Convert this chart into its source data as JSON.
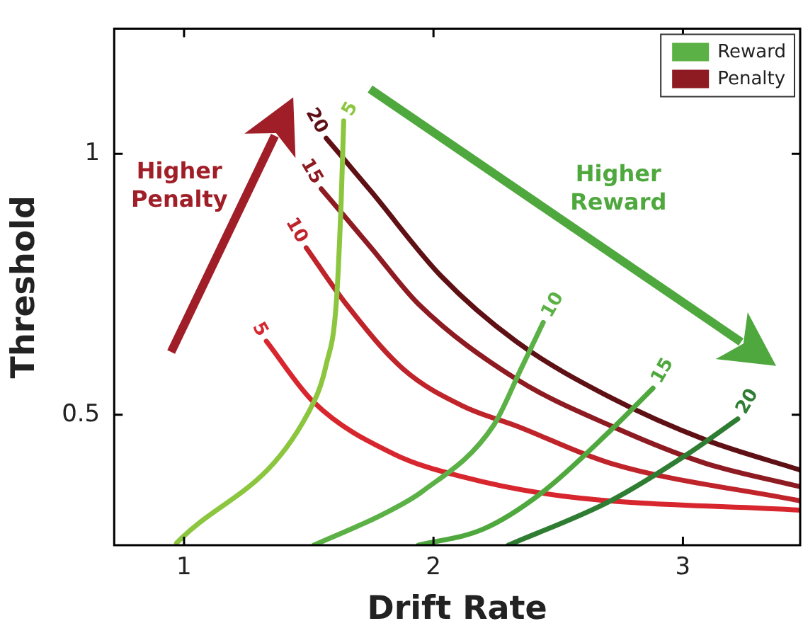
{
  "chart_data": {
    "type": "line",
    "xlabel": "Drift Rate",
    "ylabel": "Threshold",
    "xlim": [
      0.72,
      3.47
    ],
    "ylim": [
      0.25,
      1.24
    ],
    "xticks": [
      1,
      2,
      3
    ],
    "yticks": [
      0.5,
      1
    ],
    "grid": false,
    "legend": "top right",
    "marker": "none",
    "line_style": "solid",
    "series": [
      {
        "name": "Reward",
        "color": "#5bb146",
        "x": [
          1.52,
          1.8,
          1.955,
          2.24,
          2.35,
          2.44
        ],
        "values": [
          0.25,
          0.31,
          0.353,
          0.479,
          0.587,
          0.677
        ]
      },
      {
        "color": "#8cc63f",
        "x": [
          0.97,
          1.52,
          1.57,
          1.61,
          1.63,
          1.64
        ],
        "values": [
          0.254,
          0.524,
          0.596,
          0.712,
          0.91,
          1.063
        ]
      },
      {
        "color": "#4fa83d",
        "x": [
          1.94,
          2.2,
          2.43,
          2.71,
          2.88
        ],
        "values": [
          0.25,
          0.281,
          0.349,
          0.47,
          0.551
        ]
      },
      {
        "color": "#2e7d32",
        "x": [
          2.3,
          2.71,
          3.02,
          3.22
        ],
        "values": [
          0.25,
          0.335,
          0.425,
          0.492
        ]
      },
      {
        "name": "Penalty",
        "color": "#8e1b22",
        "x": [
          1.55,
          1.75,
          1.94,
          2.33,
          2.71,
          3.09,
          3.47
        ],
        "values": [
          0.933,
          0.82,
          0.712,
          0.569,
          0.479,
          0.407,
          0.362
        ]
      },
      {
        "color": "#d7262e",
        "x": [
          1.33,
          1.52,
          1.84,
          2.125,
          2.52,
          3.47
        ],
        "values": [
          0.641,
          0.524,
          0.425,
          0.38,
          0.344,
          0.317
        ]
      },
      {
        "color": "#c0242b",
        "x": [
          1.49,
          1.65,
          1.88,
          2.125,
          2.33,
          2.71,
          3.47
        ],
        "values": [
          0.82,
          0.712,
          0.587,
          0.515,
          0.479,
          0.407,
          0.335
        ]
      },
      {
        "color": "#5e1015",
        "x": [
          1.57,
          1.75,
          2.03,
          2.33,
          2.71,
          3.09,
          3.47
        ],
        "values": [
          1.03,
          0.928,
          0.766,
          0.641,
          0.533,
          0.452,
          0.394
        ]
      }
    ],
    "annotations": [
      {
        "text": "10",
        "x": 2.44,
        "y": 0.677
      },
      {
        "text": "5",
        "x": 1.64,
        "y": 1.063
      },
      {
        "text": "15",
        "x": 2.88,
        "y": 0.551
      },
      {
        "text": "20",
        "x": 3.22,
        "y": 0.492
      },
      {
        "text": "15",
        "x": 1.55,
        "y": 0.933
      },
      {
        "text": "5",
        "x": 1.33,
        "y": 0.641
      },
      {
        "text": "10",
        "x": 1.49,
        "y": 0.82
      },
      {
        "text": "20",
        "x": 1.57,
        "y": 1.03
      },
      "Higher Penalty",
      "Higher Reward"
    ]
  }
}
